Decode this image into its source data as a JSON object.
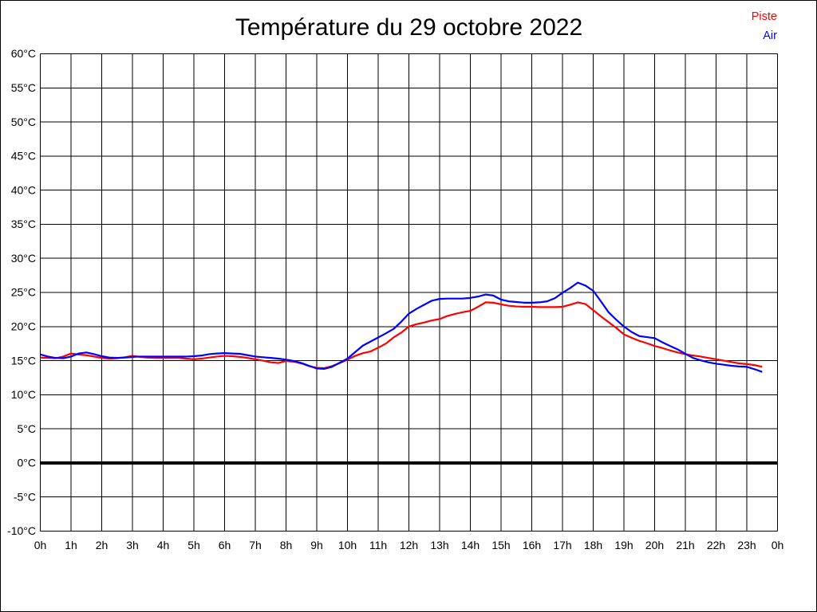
{
  "title": "Température du 29 octobre 2022",
  "legend": [
    {
      "label": "Piste",
      "color": "#ff0000"
    },
    {
      "label": "Air",
      "color": "#0000ff"
    }
  ],
  "colors": {
    "background": "#ffffff",
    "border": "#000000",
    "grid": "#000000",
    "zero_line": "#000000",
    "piste": "#ff0000",
    "air": "#0000ff"
  },
  "chart_data": {
    "type": "line",
    "title": "Température du 29 octobre 2022",
    "xlabel": "",
    "ylabel": "",
    "x_unit": "hour of day",
    "y_unit": "°C",
    "xlim": [
      0,
      24
    ],
    "ylim": [
      -10,
      60
    ],
    "y_tick_step": 5,
    "x_tick_labels": [
      "0h",
      "1h",
      "2h",
      "3h",
      "4h",
      "5h",
      "6h",
      "7h",
      "8h",
      "9h",
      "10h",
      "11h",
      "12h",
      "13h",
      "14h",
      "15h",
      "16h",
      "17h",
      "18h",
      "19h",
      "20h",
      "21h",
      "22h",
      "23h",
      "0h"
    ],
    "y_tick_labels": [
      "60°C",
      "55°C",
      "50°C",
      "45°C",
      "40°C",
      "35°C",
      "30°C",
      "25°C",
      "20°C",
      "15°C",
      "10°C",
      "5°C",
      "0°C",
      "-5°C",
      "-10°C"
    ],
    "grid": true,
    "zero_line_value": 0,
    "legend_position": "top-right",
    "x": [
      0,
      0.25,
      0.5,
      0.75,
      1,
      1.25,
      1.5,
      1.75,
      2,
      2.25,
      2.5,
      2.75,
      3,
      3.25,
      3.5,
      3.75,
      4,
      4.25,
      4.5,
      4.75,
      5,
      5.25,
      5.5,
      5.75,
      6,
      6.25,
      6.5,
      6.75,
      7,
      7.25,
      7.5,
      7.75,
      8,
      8.25,
      8.5,
      8.75,
      9,
      9.25,
      9.5,
      9.75,
      10,
      10.25,
      10.5,
      10.75,
      11,
      11.25,
      11.5,
      11.75,
      12,
      12.25,
      12.5,
      12.75,
      13,
      13.25,
      13.5,
      13.75,
      14,
      14.25,
      14.5,
      14.75,
      15,
      15.25,
      15.5,
      15.75,
      16,
      16.25,
      16.5,
      16.75,
      17,
      17.25,
      17.5,
      17.75,
      18,
      18.25,
      18.5,
      18.75,
      19,
      19.25,
      19.5,
      19.75,
      20,
      20.25,
      20.5,
      20.75,
      21,
      21.25,
      21.5,
      21.75,
      22,
      22.25,
      22.5,
      22.75,
      23,
      23.25,
      23.5
    ],
    "series": [
      {
        "name": "Piste",
        "color": "#ff0000",
        "values": [
          15.45,
          15.4,
          15.35,
          15.6,
          16.05,
          15.9,
          15.8,
          15.6,
          15.4,
          15.3,
          15.35,
          15.5,
          15.7,
          15.55,
          15.45,
          15.4,
          15.4,
          15.4,
          15.4,
          15.3,
          15.2,
          15.3,
          15.45,
          15.6,
          15.7,
          15.65,
          15.55,
          15.4,
          15.2,
          15.0,
          14.75,
          14.65,
          14.95,
          14.85,
          14.6,
          14.2,
          13.95,
          13.9,
          14.2,
          14.65,
          15.15,
          15.7,
          16.1,
          16.35,
          16.9,
          17.5,
          18.4,
          19.1,
          20.0,
          20.35,
          20.6,
          20.9,
          21.1,
          21.55,
          21.85,
          22.1,
          22.3,
          22.9,
          23.55,
          23.5,
          23.25,
          23.05,
          22.95,
          22.9,
          22.9,
          22.85,
          22.85,
          22.85,
          22.9,
          23.2,
          23.55,
          23.3,
          22.4,
          21.5,
          20.65,
          19.8,
          18.85,
          18.35,
          17.9,
          17.55,
          17.15,
          16.85,
          16.5,
          16.2,
          15.95,
          15.75,
          15.6,
          15.4,
          15.2,
          15.0,
          14.8,
          14.6,
          14.5,
          14.35,
          14.1
        ]
      },
      {
        "name": "Air",
        "color": "#0000ff",
        "values": [
          15.9,
          15.6,
          15.4,
          15.35,
          15.6,
          16.05,
          16.2,
          15.95,
          15.65,
          15.45,
          15.4,
          15.45,
          15.55,
          15.6,
          15.6,
          15.6,
          15.6,
          15.6,
          15.6,
          15.6,
          15.65,
          15.75,
          15.95,
          16.05,
          16.1,
          16.05,
          16.0,
          15.8,
          15.6,
          15.5,
          15.4,
          15.3,
          15.15,
          14.95,
          14.65,
          14.25,
          13.85,
          13.8,
          14.1,
          14.7,
          15.3,
          16.25,
          17.2,
          17.8,
          18.4,
          19.0,
          19.65,
          20.7,
          21.9,
          22.6,
          23.2,
          23.8,
          24.05,
          24.1,
          24.1,
          24.1,
          24.2,
          24.4,
          24.7,
          24.55,
          23.95,
          23.7,
          23.6,
          23.5,
          23.5,
          23.55,
          23.7,
          24.15,
          24.95,
          25.65,
          26.45,
          26.0,
          25.25,
          23.7,
          22.1,
          21.0,
          20.0,
          19.2,
          18.6,
          18.45,
          18.3,
          17.7,
          17.15,
          16.65,
          16.0,
          15.4,
          15.05,
          14.75,
          14.55,
          14.4,
          14.25,
          14.15,
          14.1,
          13.75,
          13.35
        ]
      }
    ]
  }
}
